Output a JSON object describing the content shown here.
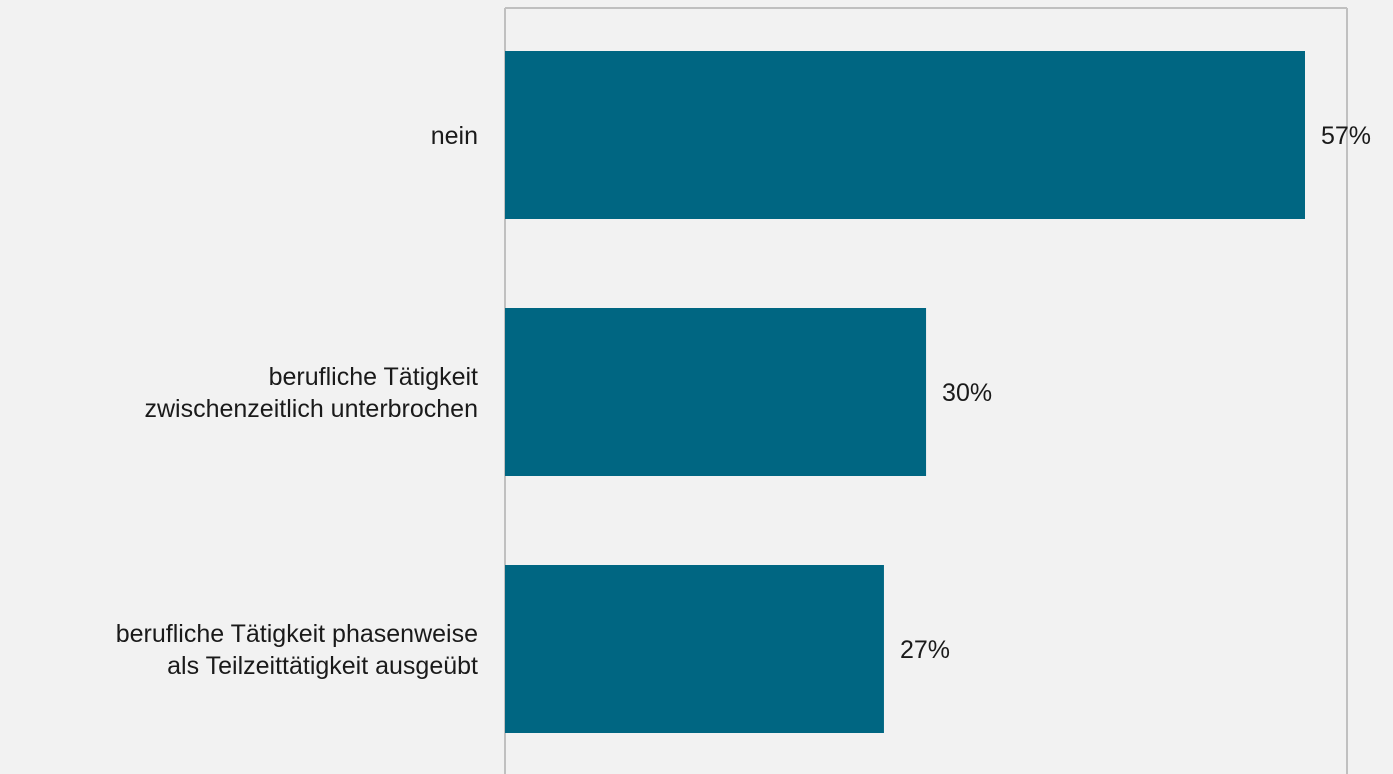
{
  "chart_data": {
    "type": "bar",
    "orientation": "horizontal",
    "title": "",
    "xlabel": "",
    "ylabel": "",
    "categories": [
      [
        "nein"
      ],
      [
        "berufliche Tätigkeit",
        "zwischenzeitlich unterbrochen"
      ],
      [
        "berufliche Tätigkeit phasenweise",
        "als Teilzeittätigkeit ausgeübt"
      ]
    ],
    "values": [
      57,
      30,
      27
    ],
    "value_labels": [
      "57%",
      "30%",
      "27%"
    ],
    "unit": "%",
    "xlim": [
      0,
      60
    ],
    "grid": false,
    "legend": "none",
    "colors": {
      "bar": "#006682",
      "background": "#f2f2f2",
      "frame": "#c0c0c0",
      "text": "#1a1a1a"
    }
  }
}
